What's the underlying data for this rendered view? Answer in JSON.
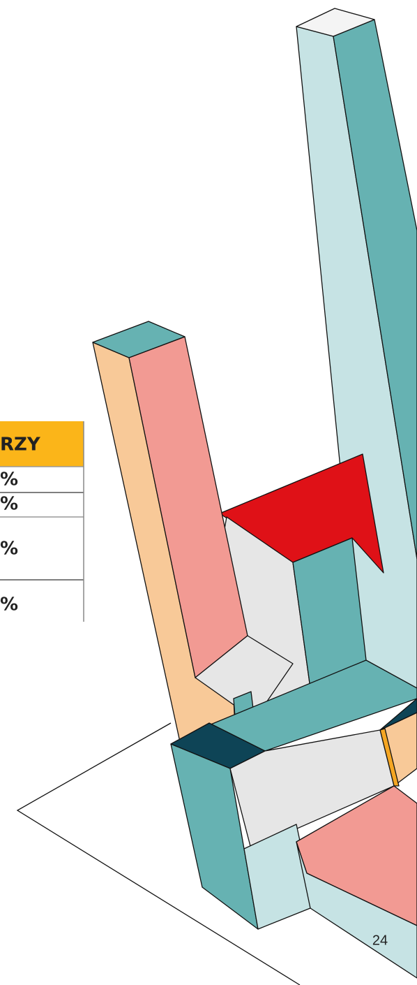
{
  "table": {
    "header": "RZY",
    "rows": [
      "%",
      "%",
      "%",
      "%"
    ]
  },
  "page_number": "24"
}
